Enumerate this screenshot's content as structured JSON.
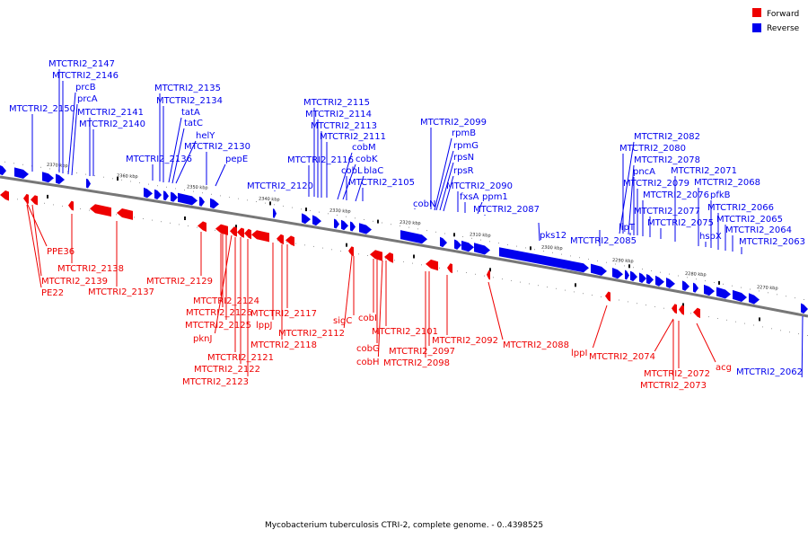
{
  "colors": {
    "forward": "#ee0000",
    "reverse": "#0000ee",
    "backbone": "#777777"
  },
  "legend": [
    {
      "label": "Forward",
      "color": "#ee0000"
    },
    {
      "label": "Reverse",
      "color": "#0000ee"
    }
  ],
  "caption": "Mycobacterium tuberculosis CTRI-2, complete genome. - 0..4398525",
  "scale_ticks": [
    "2370 kbp",
    "2360 kbp",
    "2350 kbp",
    "2340 kbp",
    "2330 kbp",
    "2320 kbp",
    "2310 kbp",
    "2300 kbp",
    "2290 kbp",
    "2280 kbp",
    "2270 kbp"
  ],
  "reverse_labels": [
    "MTCTRI2_2147",
    "MTCTRI2_2146",
    "prcB",
    "prcA",
    "MTCTRI2_2150",
    "MTCTRI2_2141",
    "MTCTRI2_2140",
    "MTCTRI2_2135",
    "MTCTRI2_2134",
    "tatA",
    "tatC",
    "helY",
    "MTCTRI2_2130",
    "MTCTRI2_2136",
    "pepE",
    "MTCTRI2_2120",
    "MTCTRI2_2115",
    "MTCTRI2_2114",
    "MTCTRI2_2113",
    "MTCTRI2_2111",
    "cobM",
    "cobK",
    "MTCTRI2_2116",
    "cobL",
    "blaC",
    "MTCTRI2_2105",
    "MTCTRI2_2099",
    "rpmB",
    "rpmG",
    "rpsN",
    "rpsR",
    "MTCTRI2_2090",
    "fxsA",
    "ppm1",
    "cobN",
    "MTCTRI2_2087",
    "pks12",
    "MTCTRI2_2085",
    "MTCTRI2_2082",
    "MTCTRI2_2080",
    "MTCTRI2_2078",
    "pncA",
    "MTCTRI2_2071",
    "MTCTRI2_2079",
    "MTCTRI2_2068",
    "MTCTRI2_2076",
    "pfkB",
    "lipT",
    "MTCTRI2_2077",
    "MTCTRI2_2066",
    "MTCTRI2_2075",
    "MTCTRI2_2065",
    "MTCTRI2_2064",
    "hspX",
    "MTCTRI2_2063",
    "MTCTRI2_2062"
  ],
  "forward_labels": [
    "PPE36",
    "MTCTRI2_2138",
    "MTCTRI2_2139",
    "PE22",
    "MTCTRI2_2137",
    "MTCTRI2_2129",
    "MTCTRI2_2124",
    "MTCTRI2_2126",
    "MTCTRI2_2117",
    "MTCTRI2_2125",
    "lppJ",
    "pknJ",
    "MTCTRI2_2118",
    "MTCTRI2_2112",
    "MTCTRI2_2121",
    "MTCTRI2_2122",
    "MTCTRI2_2123",
    "sigC",
    "cobI",
    "MTCTRI2_2101",
    "cobG",
    "MTCTRI2_2097",
    "cobH",
    "MTCTRI2_2098",
    "MTCTRI2_2092",
    "MTCTRI2_2088",
    "lppI",
    "MTCTRI2_2074",
    "acg",
    "MTCTRI2_2072",
    "MTCTRI2_2073"
  ]
}
